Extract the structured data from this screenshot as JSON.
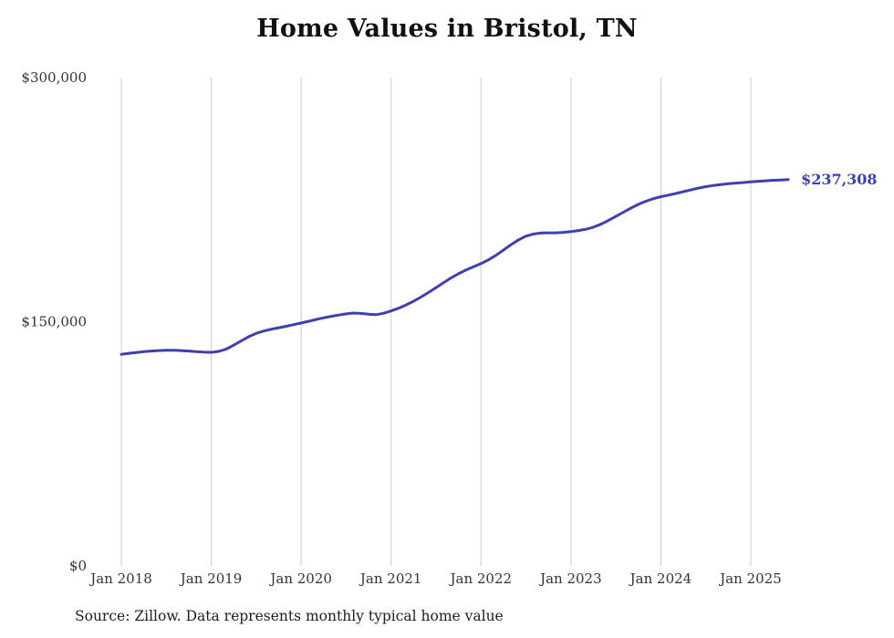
{
  "title": "Home Values in Bristol, TN",
  "source_note": "Source: Zillow. Data represents monthly typical home value",
  "colors": {
    "line": "#3f3fad",
    "grid": "#cccccc",
    "axis_text": "#333333"
  },
  "chart_data": {
    "type": "line",
    "title": "Home Values in Bristol, TN",
    "x_start": "Jan 2018",
    "x_end": "Jun 2025",
    "x_ticks": [
      "Jan 2018",
      "Jan 2019",
      "Jan 2020",
      "Jan 2021",
      "Jan 2022",
      "Jan 2023",
      "Jan 2024",
      "Jan 2025"
    ],
    "y_ticks": [
      {
        "value": 0,
        "label": "$0"
      },
      {
        "value": 150000,
        "label": "$150,000"
      },
      {
        "value": 300000,
        "label": "$300,000"
      }
    ],
    "ylim": [
      0,
      300000
    ],
    "grid": "vertical-only",
    "legend": "none",
    "last_value_label": "$237,308",
    "series": [
      {
        "name": "Typical home value (monthly)",
        "values": [
          130000,
          130600,
          131100,
          131600,
          132000,
          132300,
          132500,
          132500,
          132300,
          132000,
          131600,
          131300,
          131200,
          131800,
          133200,
          135600,
          138200,
          140800,
          142900,
          144300,
          145400,
          146300,
          147200,
          148200,
          149200,
          150300,
          151400,
          152400,
          153300,
          154100,
          154800,
          155300,
          155100,
          154600,
          154300,
          155200,
          156600,
          158300,
          160300,
          162600,
          165200,
          168000,
          171000,
          174000,
          176900,
          179500,
          181800,
          183800,
          185700,
          188000,
          190800,
          194000,
          197300,
          200300,
          202600,
          203900,
          204500,
          204600,
          204600,
          204900,
          205400,
          206000,
          206800,
          208100,
          209900,
          212200,
          214700,
          217300,
          219800,
          222100,
          224000,
          225600,
          226800,
          227800,
          228800,
          229900,
          231000,
          232100,
          233000,
          233700,
          234300,
          234800,
          235200,
          235500,
          235900,
          236300,
          236600,
          236900,
          237100,
          237308
        ]
      }
    ]
  }
}
